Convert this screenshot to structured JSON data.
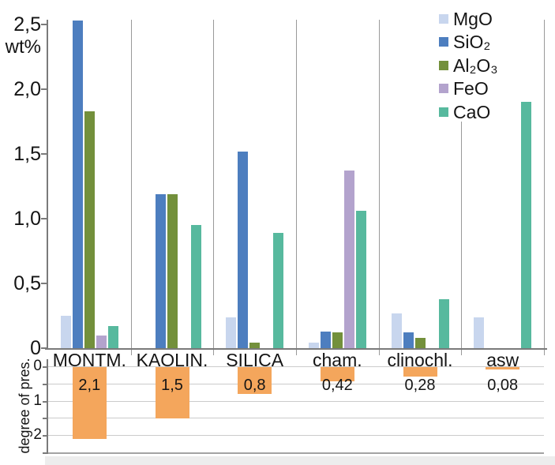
{
  "labels": {
    "wt_percent": "wt%",
    "degree_axis": "degree of pres."
  },
  "colors": {
    "MgO": "#c8d6ee",
    "SiO2": "#4d7ebf",
    "Al2O3": "#73903b",
    "FeO": "#b3a3cd",
    "CaO": "#57b99e",
    "pres_bar": "#f4a65c",
    "axis": "#7a7a7a",
    "separator": "#9a9a9a",
    "grid": "#cbcbcb",
    "grid_bottom_border": "#a3a3a3",
    "text": "#141414",
    "bottom_strip": "#ededed"
  },
  "legend": {
    "position": "top-right",
    "items": [
      {
        "key": "MgO",
        "label": "MgO"
      },
      {
        "key": "SiO2",
        "label": "SiO₂"
      },
      {
        "key": "Al2O3",
        "label": "Al₂O₃"
      },
      {
        "key": "FeO",
        "label": "FeO"
      },
      {
        "key": "CaO",
        "label": "CaO"
      }
    ]
  },
  "chart_data": [
    {
      "type": "bar",
      "title": "",
      "ylabel": "wt%",
      "xlabel": "",
      "categories": [
        "MONTM.",
        "KAOLIN.",
        "SILICA",
        "cham.",
        "clinochl.",
        "asw"
      ],
      "series": [
        {
          "key": "MgO",
          "name": "MgO",
          "values": [
            0.25,
            0,
            0.24,
            0.04,
            0.27,
            0.24
          ]
        },
        {
          "key": "SiO2",
          "name": "SiO₂",
          "values": [
            2.53,
            1.19,
            1.52,
            0.13,
            0.12,
            0
          ]
        },
        {
          "key": "Al2O3",
          "name": "Al₂O₃",
          "values": [
            1.83,
            1.19,
            0.04,
            0.12,
            0.08,
            0
          ]
        },
        {
          "key": "FeO",
          "name": "FeO",
          "values": [
            0.1,
            0,
            0,
            1.37,
            0,
            0
          ]
        },
        {
          "key": "CaO",
          "name": "CaO",
          "values": [
            0.17,
            0.95,
            0.89,
            1.06,
            0.38,
            1.9
          ]
        }
      ],
      "ylim": [
        0,
        2.54
      ],
      "yticks": [
        {
          "label": "2,5",
          "value": 2.5
        },
        {
          "label": "2,0",
          "value": 2.0
        },
        {
          "label": "1,5",
          "value": 1.5
        },
        {
          "label": "1,0",
          "value": 1.0
        },
        {
          "label": "0,5",
          "value": 0.5
        },
        {
          "label": "0",
          "value": 0
        }
      ],
      "grid": "vertical category separators, no horizontal gridlines",
      "legend_position": "top-right",
      "note": "MONTM. SiO2 bar is clipped at the top of the plot area (value >= 2.5)"
    },
    {
      "type": "bar",
      "title": "",
      "ylabel": "degree of pres.",
      "xlabel": "",
      "orientation": "downward",
      "categories": [
        "MONTM.",
        "KAOLIN.",
        "SILICA",
        "cham.",
        "clinochl.",
        "asw"
      ],
      "values": [
        2.1,
        1.5,
        0.8,
        0.42,
        0.28,
        0.08
      ],
      "value_labels": [
        "2,1",
        "1,5",
        "0,8",
        "0,42",
        "0,28",
        "0,08"
      ],
      "ylim": [
        0,
        2.5
      ],
      "yticks": [
        {
          "label": "0",
          "value": 0
        },
        {
          "label": "1",
          "value": 1
        },
        {
          "label": "2",
          "value": 2
        }
      ],
      "grid": "horizontal gridlines every 0.5",
      "legend_position": "none"
    }
  ]
}
